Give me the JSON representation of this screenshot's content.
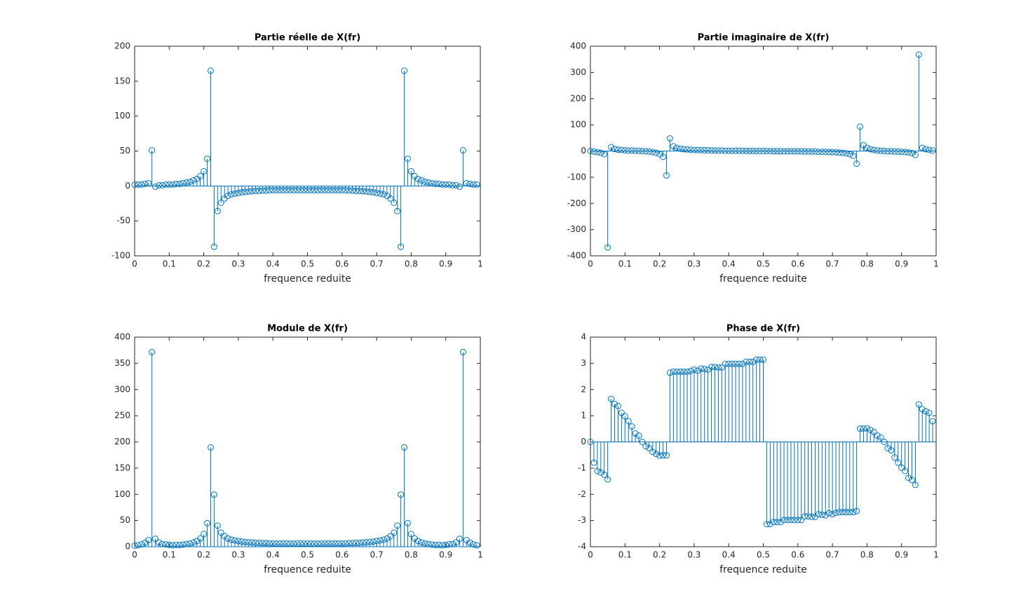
{
  "chart_data": [
    {
      "type": "stem",
      "title": "Partie réelle de X(fr)",
      "x_label": "frequence reduite",
      "color": "#0072bd",
      "x": [
        0,
        0.01,
        0.02,
        0.03,
        0.04,
        0.05,
        0.06,
        0.07,
        0.08,
        0.09,
        0.1,
        0.11,
        0.12,
        0.13,
        0.14,
        0.15,
        0.16,
        0.17,
        0.18,
        0.19,
        0.2,
        0.21,
        0.22,
        0.23,
        0.24,
        0.25,
        0.26,
        0.27,
        0.28,
        0.29,
        0.3,
        0.31,
        0.32,
        0.33,
        0.34,
        0.35,
        0.36,
        0.37,
        0.38,
        0.39,
        0.4,
        0.41,
        0.42,
        0.43,
        0.44,
        0.45,
        0.46,
        0.47,
        0.48,
        0.49,
        0.5,
        0.51,
        0.52,
        0.53,
        0.54,
        0.55,
        0.56,
        0.57,
        0.58,
        0.59,
        0.6,
        0.61,
        0.62,
        0.63,
        0.64,
        0.65,
        0.66,
        0.67,
        0.68,
        0.69,
        0.7,
        0.71,
        0.72,
        0.73,
        0.74,
        0.75,
        0.76,
        0.77,
        0.78,
        0.79,
        0.8,
        0.81,
        0.82,
        0.83,
        0.84,
        0.85,
        0.86,
        0.87,
        0.88,
        0.89,
        0.9,
        0.91,
        0.92,
        0.93,
        0.94,
        0.95,
        0.96,
        0.97,
        0.98,
        0.99
      ],
      "values": [
        2,
        2,
        2,
        3,
        4,
        51,
        -1,
        1,
        1,
        2,
        2,
        2,
        3,
        3,
        4,
        5,
        6,
        8,
        10,
        14,
        21,
        39,
        165,
        -87,
        -36,
        -24,
        -18,
        -14,
        -12,
        -11,
        -10,
        -9,
        -8.5,
        -8,
        -7.5,
        -7,
        -7,
        -6.5,
        -6.5,
        -6,
        -6,
        -6,
        -6,
        -6,
        -6,
        -6,
        -6,
        -6,
        -6,
        -6,
        -6,
        -6,
        -6,
        -6,
        -6,
        -6,
        -6,
        -6,
        -6,
        -6,
        -6,
        -6,
        -6.5,
        -6.5,
        -7,
        -7,
        -7.5,
        -8,
        -8.5,
        -9,
        -10,
        -11,
        -12,
        -14,
        -18,
        -24,
        -36,
        -87,
        165,
        39,
        21,
        14,
        10,
        8,
        6,
        5,
        4,
        3,
        3,
        2,
        2,
        2,
        1,
        1,
        -1,
        51,
        4,
        3,
        2,
        2
      ],
      "xlim": [
        0,
        1
      ],
      "xticks": [
        0,
        0.1,
        0.2,
        0.3,
        0.4,
        0.5,
        0.6,
        0.7,
        0.8,
        0.9,
        1
      ],
      "ylim": [
        -100,
        200
      ],
      "yticks": [
        -100,
        -50,
        0,
        50,
        100,
        150,
        200
      ]
    },
    {
      "type": "stem",
      "title": "Partie imaginaire de X(fr)",
      "x_label": "frequence reduite",
      "color": "#0072bd",
      "x": [
        0,
        0.01,
        0.02,
        0.03,
        0.04,
        0.05,
        0.06,
        0.07,
        0.08,
        0.09,
        0.1,
        0.11,
        0.12,
        0.13,
        0.14,
        0.15,
        0.16,
        0.17,
        0.18,
        0.19,
        0.2,
        0.21,
        0.22,
        0.23,
        0.24,
        0.25,
        0.26,
        0.27,
        0.28,
        0.29,
        0.3,
        0.31,
        0.32,
        0.33,
        0.34,
        0.35,
        0.36,
        0.37,
        0.38,
        0.39,
        0.4,
        0.41,
        0.42,
        0.43,
        0.44,
        0.45,
        0.46,
        0.47,
        0.48,
        0.49,
        0.5,
        0.51,
        0.52,
        0.53,
        0.54,
        0.55,
        0.56,
        0.57,
        0.58,
        0.59,
        0.6,
        0.61,
        0.62,
        0.63,
        0.64,
        0.65,
        0.66,
        0.67,
        0.68,
        0.69,
        0.7,
        0.71,
        0.72,
        0.73,
        0.74,
        0.75,
        0.76,
        0.77,
        0.78,
        0.79,
        0.8,
        0.81,
        0.82,
        0.83,
        0.84,
        0.85,
        0.86,
        0.87,
        0.88,
        0.89,
        0.9,
        0.91,
        0.92,
        0.93,
        0.94,
        0.95,
        0.96,
        0.97,
        0.98,
        0.99
      ],
      "values": [
        0,
        -2,
        -4,
        -7,
        -12,
        -368,
        15,
        8,
        5,
        4,
        3,
        2,
        2,
        1,
        1,
        0,
        -1,
        -2,
        -4,
        -7,
        -12,
        -22,
        -93,
        48,
        18,
        12,
        9,
        7,
        6,
        5,
        4,
        4,
        3,
        3,
        3,
        2,
        2,
        2,
        2,
        1,
        1,
        1,
        1,
        1,
        1,
        0.5,
        0.5,
        0.5,
        0,
        0,
        0,
        0,
        0,
        -0.5,
        -0.5,
        -0.5,
        -1,
        -1,
        -1,
        -1,
        -1,
        -1,
        -2,
        -2,
        -2,
        -2,
        -3,
        -3,
        -3,
        -4,
        -4,
        -5,
        -6,
        -7,
        -9,
        -12,
        -18,
        -48,
        93,
        22,
        12,
        7,
        4,
        2,
        1,
        0,
        -1,
        -1,
        -2,
        -2,
        -3,
        -4,
        -5,
        -8,
        -15,
        368,
        12,
        7,
        4,
        2
      ],
      "xlim": [
        0,
        1
      ],
      "xticks": [
        0,
        0.1,
        0.2,
        0.3,
        0.4,
        0.5,
        0.6,
        0.7,
        0.8,
        0.9,
        1
      ],
      "ylim": [
        -400,
        400
      ],
      "yticks": [
        -400,
        -300,
        -200,
        -100,
        0,
        100,
        200,
        300,
        400
      ]
    },
    {
      "type": "stem",
      "title": "Module de X(fr)",
      "x_label": "frequence reduite",
      "color": "#0072bd",
      "x": [
        0,
        0.01,
        0.02,
        0.03,
        0.04,
        0.05,
        0.06,
        0.07,
        0.08,
        0.09,
        0.1,
        0.11,
        0.12,
        0.13,
        0.14,
        0.15,
        0.16,
        0.17,
        0.18,
        0.19,
        0.2,
        0.21,
        0.22,
        0.23,
        0.24,
        0.25,
        0.26,
        0.27,
        0.28,
        0.29,
        0.3,
        0.31,
        0.32,
        0.33,
        0.34,
        0.35,
        0.36,
        0.37,
        0.38,
        0.39,
        0.4,
        0.41,
        0.42,
        0.43,
        0.44,
        0.45,
        0.46,
        0.47,
        0.48,
        0.49,
        0.5,
        0.51,
        0.52,
        0.53,
        0.54,
        0.55,
        0.56,
        0.57,
        0.58,
        0.59,
        0.6,
        0.61,
        0.62,
        0.63,
        0.64,
        0.65,
        0.66,
        0.67,
        0.68,
        0.69,
        0.7,
        0.71,
        0.72,
        0.73,
        0.74,
        0.75,
        0.76,
        0.77,
        0.78,
        0.79,
        0.8,
        0.81,
        0.82,
        0.83,
        0.84,
        0.85,
        0.86,
        0.87,
        0.88,
        0.89,
        0.9,
        0.91,
        0.92,
        0.93,
        0.94,
        0.95,
        0.96,
        0.97,
        0.98,
        0.99
      ],
      "values": [
        2,
        2.8,
        4.5,
        7.6,
        12.6,
        371.5,
        15,
        8.1,
        5.1,
        4.5,
        3.6,
        2.8,
        3.6,
        3.2,
        4.1,
        5,
        6.1,
        8.2,
        10.8,
        15.7,
        24.2,
        44.9,
        189.4,
        99.4,
        40.2,
        26.8,
        20.1,
        15.7,
        13.4,
        12.1,
        10.8,
        9.8,
        9,
        8.5,
        8.1,
        7.3,
        7.3,
        6.8,
        6.8,
        6.1,
        6.1,
        6.1,
        6.1,
        6.1,
        6.1,
        6,
        6,
        6,
        6,
        6,
        6,
        6,
        6,
        6,
        6,
        6,
        6.1,
        6.1,
        6.1,
        6.1,
        6.1,
        6.1,
        6.8,
        6.8,
        7.3,
        7.3,
        8.1,
        8.5,
        9,
        9.8,
        10.8,
        12.1,
        13.4,
        15.7,
        20.1,
        26.8,
        40.2,
        99.4,
        189.4,
        44.9,
        24.2,
        15.7,
        10.8,
        8.2,
        6.1,
        5,
        4.1,
        3.2,
        3.6,
        2.8,
        3.6,
        4.5,
        5.1,
        8.1,
        15,
        371.5,
        12.6,
        7.6,
        4.5,
        2.8
      ],
      "xlim": [
        0,
        1
      ],
      "xticks": [
        0,
        0.1,
        0.2,
        0.3,
        0.4,
        0.5,
        0.6,
        0.7,
        0.8,
        0.9,
        1
      ],
      "ylim": [
        0,
        400
      ],
      "yticks": [
        0,
        50,
        100,
        150,
        200,
        250,
        300,
        350,
        400
      ]
    },
    {
      "type": "stem",
      "title": "Phase de X(fr)",
      "x_label": "frequence reduite",
      "color": "#0072bd",
      "x": [
        0,
        0.01,
        0.02,
        0.03,
        0.04,
        0.05,
        0.06,
        0.07,
        0.08,
        0.09,
        0.1,
        0.11,
        0.12,
        0.13,
        0.14,
        0.15,
        0.16,
        0.17,
        0.18,
        0.19,
        0.2,
        0.21,
        0.22,
        0.23,
        0.24,
        0.25,
        0.26,
        0.27,
        0.28,
        0.29,
        0.3,
        0.31,
        0.32,
        0.33,
        0.34,
        0.35,
        0.36,
        0.37,
        0.38,
        0.39,
        0.4,
        0.41,
        0.42,
        0.43,
        0.44,
        0.45,
        0.46,
        0.47,
        0.48,
        0.49,
        0.5,
        0.51,
        0.52,
        0.53,
        0.54,
        0.55,
        0.56,
        0.57,
        0.58,
        0.59,
        0.6,
        0.61,
        0.62,
        0.63,
        0.64,
        0.65,
        0.66,
        0.67,
        0.68,
        0.69,
        0.7,
        0.71,
        0.72,
        0.73,
        0.74,
        0.75,
        0.76,
        0.77,
        0.78,
        0.79,
        0.8,
        0.81,
        0.82,
        0.83,
        0.84,
        0.85,
        0.86,
        0.87,
        0.88,
        0.89,
        0.9,
        0.91,
        0.92,
        0.93,
        0.94,
        0.95,
        0.96,
        0.97,
        0.98,
        0.99
      ],
      "values": [
        0,
        -0.79,
        -1.11,
        -1.17,
        -1.25,
        -1.43,
        1.64,
        1.45,
        1.37,
        1.11,
        0.98,
        0.79,
        0.59,
        0.32,
        0.24,
        0,
        -0.17,
        -0.24,
        -0.38,
        -0.46,
        -0.52,
        -0.51,
        -0.51,
        2.64,
        2.68,
        2.68,
        2.68,
        2.68,
        2.68,
        2.71,
        2.76,
        2.72,
        2.8,
        2.78,
        2.76,
        2.86,
        2.86,
        2.84,
        2.84,
        2.98,
        2.98,
        2.98,
        2.98,
        2.98,
        2.98,
        3.06,
        3.06,
        3.06,
        3.14,
        3.14,
        3.14,
        -3.14,
        -3.14,
        -3.06,
        -3.06,
        -3.06,
        -2.98,
        -2.98,
        -2.98,
        -2.98,
        -2.98,
        -2.98,
        -2.84,
        -2.84,
        -2.86,
        -2.86,
        -2.76,
        -2.78,
        -2.8,
        -2.72,
        -2.76,
        -2.71,
        -2.68,
        -2.68,
        -2.68,
        -2.68,
        -2.68,
        -2.64,
        0.51,
        0.51,
        0.52,
        0.46,
        0.38,
        0.24,
        0.17,
        0,
        -0.24,
        -0.32,
        -0.59,
        -0.79,
        -0.98,
        -1.11,
        -1.37,
        -1.45,
        -1.64,
        1.43,
        1.25,
        1.17,
        1.11,
        0.79
      ],
      "xlim": [
        0,
        1
      ],
      "xticks": [
        0,
        0.1,
        0.2,
        0.3,
        0.4,
        0.5,
        0.6,
        0.7,
        0.8,
        0.9,
        1
      ],
      "ylim": [
        -4,
        4
      ],
      "yticks": [
        -4,
        -3,
        -2,
        -1,
        0,
        1,
        2,
        3,
        4
      ]
    }
  ]
}
